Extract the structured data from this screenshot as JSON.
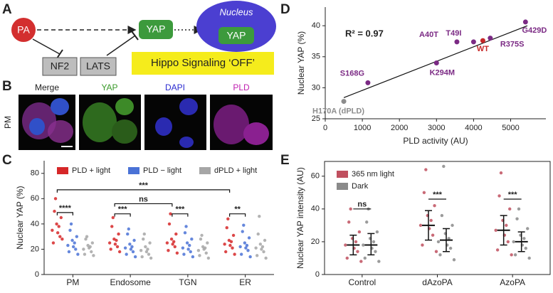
{
  "panel_labels": [
    "A",
    "B",
    "C",
    "D",
    "E"
  ],
  "diagram": {
    "pa": "PA",
    "nf2": "NF2",
    "lats": "LATS",
    "yap": "YAP",
    "nucleus": "Nucleus",
    "nucleus_yap": "YAP",
    "hippo": "Hippo Signaling ‘OFF’"
  },
  "images": {
    "channels": [
      "Merge",
      "YAP",
      "DAPI",
      "PLD"
    ],
    "row_label": "PM"
  },
  "chart_data": [
    {
      "type": "swarm",
      "ylabel": "Nuclear YAP (%)",
      "categories": [
        "PM",
        "Endosome",
        "TGN",
        "ER"
      ],
      "series": [
        {
          "name": "PLD + light",
          "color": "#d62728",
          "values": [
            [
              35,
              30,
              40,
              25,
              45,
              33,
              50,
              28,
              38,
              60
            ],
            [
              25,
              22,
              28,
              20,
              32,
              24,
              38,
              18,
              27,
              45
            ],
            [
              25,
              22,
              28,
              19,
              32,
              24,
              40,
              17,
              26,
              48
            ],
            [
              24,
              21,
              27,
              18,
              31,
              23,
              37,
              16,
              26,
              44
            ]
          ]
        },
        {
          "name": "PLD − light",
          "color": "#4a72d6",
          "values": [
            [
              23,
              20,
              27,
              18,
              30,
              22,
              35,
              16,
              25,
              40
            ],
            [
              21,
              18,
              24,
              16,
              27,
              20,
              32,
              14,
              22,
              36
            ],
            [
              21,
              18,
              25,
              16,
              28,
              20,
              33,
              14,
              23,
              38
            ],
            [
              22,
              19,
              25,
              16,
              29,
              21,
              34,
              14,
              23,
              39
            ]
          ]
        },
        {
          "name": "dPLD + light",
          "color": "#a6a6a6",
          "values": [
            [
              20,
              18,
              23,
              16,
              25,
              21,
              28,
              15,
              22,
              30
            ],
            [
              19,
              16,
              22,
              14,
              25,
              18,
              28,
              13,
              20,
              32
            ],
            [
              19,
              17,
              22,
              15,
              25,
              20,
              28,
              13,
              21,
              31
            ],
            [
              21,
              18,
              24,
              15,
              27,
              20,
              32,
              13,
              22,
              46
            ]
          ]
        }
      ],
      "ylim": [
        0,
        90
      ],
      "yticks": [
        0,
        20,
        40,
        60,
        80
      ],
      "significance": [
        {
          "label": "***",
          "y": 67
        },
        {
          "label": "ns",
          "y": 56
        },
        {
          "label": "****",
          "y": 49
        },
        {
          "label": "***",
          "y": 48
        },
        {
          "label": "***",
          "y": 48
        },
        {
          "label": "**",
          "y": 48
        }
      ]
    },
    {
      "type": "scatter",
      "xlabel": "PLD activity (AU)",
      "ylabel": "Nuclear YAP (%)",
      "annotation": "R² = 0.97",
      "labels": [
        "H170A (dPLD)",
        "S168G",
        "K294M",
        "A40T",
        "T49I",
        "WT",
        "R375S",
        "G429D"
      ],
      "x": [
        500,
        1150,
        3000,
        3550,
        4000,
        4250,
        4450,
        5400
      ],
      "y": [
        27.8,
        30.8,
        34,
        37.4,
        37.4,
        37.6,
        38,
        40.6
      ],
      "colors": [
        "#8c8c8c",
        "#7b2a84",
        "#7b2a84",
        "#7b2a84",
        "#7b2a84",
        "#c62828",
        "#7b2a84",
        "#7b2a84"
      ],
      "fit": {
        "x": [
          500,
          5450
        ],
        "y": [
          28.4,
          40
        ]
      },
      "xlim": [
        0,
        5950
      ],
      "ylim": [
        25,
        43
      ],
      "xticks": [
        0,
        1000,
        2000,
        3000,
        4000,
        5000
      ],
      "yticks": [
        25,
        30,
        35,
        40
      ]
    },
    {
      "type": "swarm",
      "ylabel": "Nuclear YAP intensity (AU)",
      "categories": [
        "Control",
        "dAzoPA",
        "AzoPA"
      ],
      "series": [
        {
          "name": "365 nm light",
          "color": "#c0505f",
          "values": [
            [
              18,
              14,
              22,
              10,
              26,
              16,
              32,
              8,
              20,
              40
            ],
            [
              30,
              24,
              36,
              18,
              42,
              28,
              50,
              14,
              33,
              64
            ],
            [
              27,
              20,
              33,
              15,
              40,
              24,
              48,
              12,
              30,
              62
            ]
          ],
          "median": [
            18,
            30,
            27
          ],
          "error": [
            [
              12,
              24
            ],
            [
              21,
              39
            ],
            [
              18,
              36
            ]
          ]
        },
        {
          "name": "Dark",
          "color": "#8a8a8a",
          "values": [
            [
              18,
              14,
              22,
              10,
              26,
              16,
              32,
              8,
              20,
              40
            ],
            [
              20,
              16,
              25,
              12,
              30,
              18,
              36,
              9,
              22,
              66
            ],
            [
              20,
              16,
              24,
              12,
              28,
              18,
              34,
              10,
              22,
              40
            ]
          ],
          "median": [
            18,
            21,
            20
          ],
          "error": [
            [
              12,
              25
            ],
            [
              14,
              28
            ],
            [
              14,
              26
            ]
          ]
        }
      ],
      "ylim": [
        0,
        69
      ],
      "yticks": [
        0,
        20,
        40,
        60
      ],
      "significance": [
        {
          "label": "ns",
          "y": 40
        },
        {
          "label": "***",
          "y": 46
        },
        {
          "label": "***",
          "y": 46
        }
      ]
    }
  ]
}
